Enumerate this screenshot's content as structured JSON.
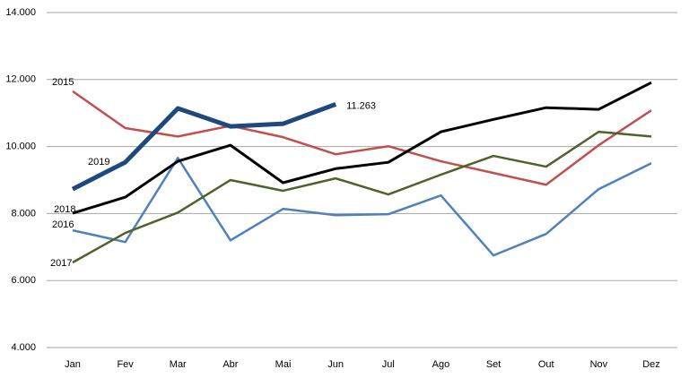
{
  "chart_data": {
    "type": "line",
    "categories": [
      "Jan",
      "Fev",
      "Mar",
      "Abr",
      "Mai",
      "Jun",
      "Jul",
      "Ago",
      "Set",
      "Out",
      "Nov",
      "Dez"
    ],
    "series": [
      {
        "name": "2015",
        "color": "#c0504d",
        "values": [
          11650,
          10550,
          10300,
          10620,
          10280,
          9770,
          10010,
          9560,
          9210,
          8860,
          10040,
          11080
        ]
      },
      {
        "name": "2016",
        "color": "#4f81bd",
        "values": [
          7500,
          7150,
          9660,
          7200,
          8140,
          7950,
          7980,
          8540,
          6750,
          7390,
          8730,
          9500
        ]
      },
      {
        "name": "2017",
        "color": "#4f6228",
        "values": [
          6540,
          7420,
          8030,
          9000,
          8680,
          9050,
          8570,
          9160,
          9720,
          9400,
          10440,
          10300
        ]
      },
      {
        "name": "2018",
        "color": "#000000",
        "values": [
          8010,
          8490,
          9560,
          10040,
          8920,
          9340,
          9530,
          10440,
          10810,
          11160,
          11110,
          11910
        ]
      },
      {
        "name": "2019",
        "color": "#1f497d",
        "values": [
          8730,
          9530,
          11140,
          10600,
          10680,
          11263,
          null,
          null,
          null,
          null,
          null,
          null
        ],
        "value_labels": [
          null,
          null,
          null,
          null,
          null,
          "11.263",
          null,
          null,
          null,
          null,
          null,
          null
        ]
      }
    ],
    "ylim": [
      4000,
      14000
    ],
    "yticks": [
      {
        "value": 4000,
        "label": "4.000"
      },
      {
        "value": 6000,
        "label": "6.000"
      },
      {
        "value": 8000,
        "label": "8.000"
      },
      {
        "value": 10000,
        "label": "10.000"
      },
      {
        "value": 12000,
        "label": "12.000"
      },
      {
        "value": 14000,
        "label": "14.000"
      }
    ],
    "grid": true
  }
}
